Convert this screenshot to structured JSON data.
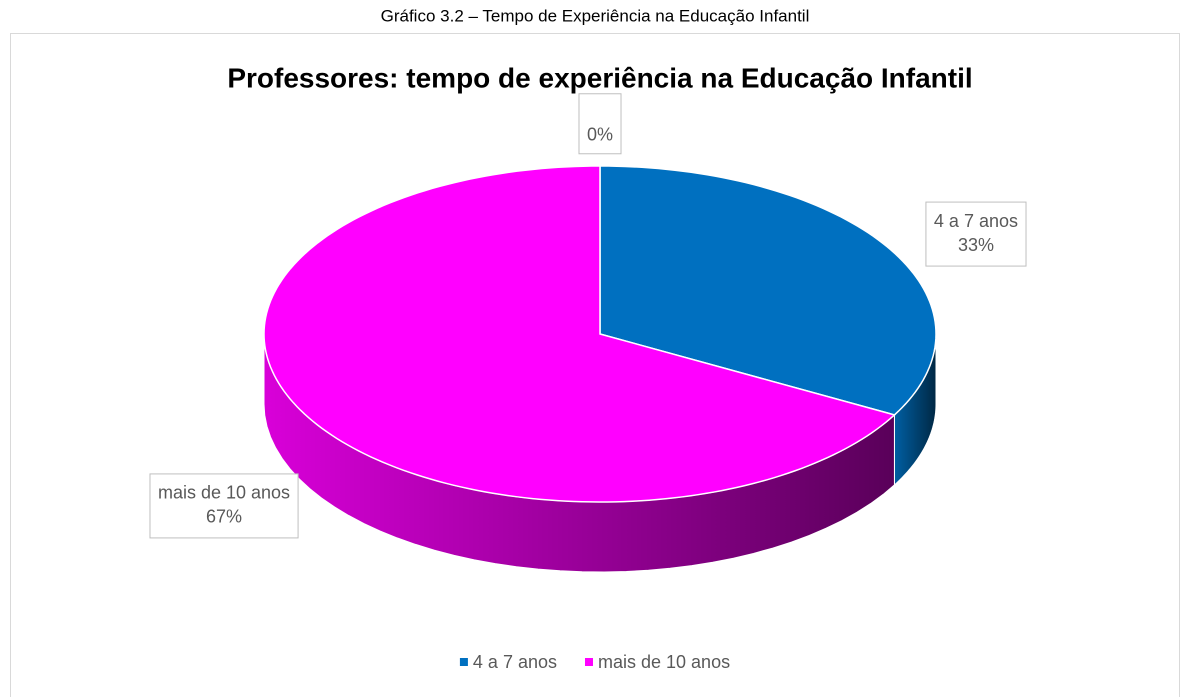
{
  "caption": "Gráfico 3.2 – Tempo de Experiência na Educação Infantil",
  "chart_data": {
    "type": "pie",
    "title": "Professores: tempo de experiência na Educação Infantil",
    "categories": [
      "4 a 7 anos",
      "mais de 10 anos",
      null
    ],
    "values": [
      33,
      67,
      0
    ],
    "value_labels": [
      "33%",
      "67%",
      "0%"
    ],
    "colors": [
      "#0070c0",
      "#ff00ff"
    ],
    "three_d": true,
    "legend": "bottom"
  }
}
